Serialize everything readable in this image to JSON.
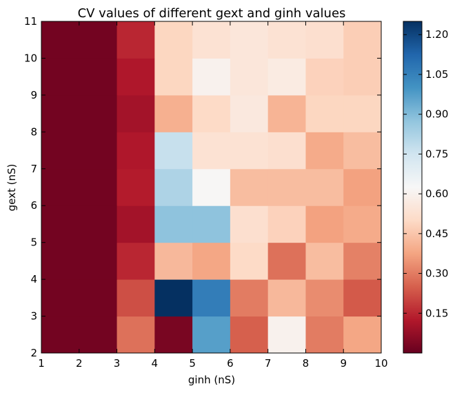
{
  "chart_data": {
    "type": "heatmap",
    "title": "CV values of different gext and ginh values",
    "xlabel": "ginh (nS)",
    "ylabel": "gext (nS)",
    "x_edges": [
      1,
      2,
      3,
      4,
      5,
      6,
      7,
      8,
      9,
      10
    ],
    "y_edges": [
      2,
      3,
      4,
      5,
      6,
      7,
      8,
      9,
      10,
      11
    ],
    "xlim": [
      1,
      10
    ],
    "ylim": [
      2,
      11
    ],
    "colormap": "RdBu",
    "colorbar": {
      "vmin": 0.0,
      "vmax": 1.25,
      "ticks": [
        "0.15",
        "0.30",
        "0.45",
        "0.60",
        "0.75",
        "0.90",
        "1.05",
        "1.20"
      ]
    },
    "x_tick_labels": [
      "1",
      "2",
      "3",
      "4",
      "5",
      "6",
      "7",
      "8",
      "9",
      "10"
    ],
    "y_tick_labels": [
      "2",
      "3",
      "4",
      "5",
      "6",
      "7",
      "8",
      "9",
      "10",
      "11"
    ],
    "rows_from_bottom": [
      [
        0.02,
        0.02,
        0.28,
        0.03,
        0.97,
        0.25,
        0.6,
        0.3,
        0.38
      ],
      [
        0.02,
        0.02,
        0.22,
        1.25,
        1.06,
        0.3,
        0.42,
        0.33,
        0.24
      ],
      [
        0.02,
        0.02,
        0.15,
        0.42,
        0.38,
        0.5,
        0.28,
        0.43,
        0.31
      ],
      [
        0.02,
        0.02,
        0.1,
        0.88,
        0.88,
        0.52,
        0.48,
        0.37,
        0.39
      ],
      [
        0.02,
        0.02,
        0.13,
        0.82,
        0.62,
        0.43,
        0.43,
        0.43,
        0.37
      ],
      [
        0.02,
        0.02,
        0.12,
        0.77,
        0.53,
        0.53,
        0.52,
        0.39,
        0.43
      ],
      [
        0.02,
        0.02,
        0.1,
        0.4,
        0.5,
        0.56,
        0.41,
        0.49,
        0.49
      ],
      [
        0.02,
        0.02,
        0.12,
        0.49,
        0.6,
        0.55,
        0.57,
        0.48,
        0.47
      ],
      [
        0.02,
        0.02,
        0.15,
        0.49,
        0.53,
        0.55,
        0.53,
        0.52,
        0.47
      ]
    ]
  }
}
